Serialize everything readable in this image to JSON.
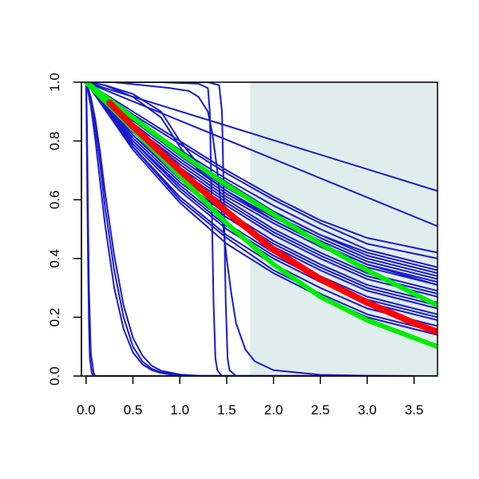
{
  "chart_data": {
    "type": "line",
    "title": "",
    "xlabel": "",
    "ylabel": "",
    "xlim": [
      -0.05,
      3.75
    ],
    "ylim": [
      0.0,
      1.0
    ],
    "x_ticks": [
      0.0,
      0.5,
      1.0,
      1.5,
      2.0,
      2.5,
      3.0,
      3.5
    ],
    "x_tick_labels": [
      "0.0",
      "0.5",
      "1.0",
      "1.5",
      "2.0",
      "2.5",
      "3.0",
      "3.5"
    ],
    "y_ticks": [
      0.0,
      0.2,
      0.4,
      0.6,
      0.8,
      1.0
    ],
    "y_tick_labels": [
      "0.0",
      "0.2",
      "0.4",
      "0.6",
      "0.8",
      "1.0"
    ],
    "grid": false,
    "legend": "none",
    "shaded_region": {
      "x_start": 1.75,
      "x_end": 3.75,
      "color": "#e0eded"
    },
    "colors": {
      "sample_curves": "#1a1acc",
      "estimate": "#ff0000",
      "bounds": "#00ee00"
    },
    "sample_curves": [
      {
        "x": [
          0.0,
          3.75
        ],
        "y": [
          1.0,
          0.63
        ]
      },
      {
        "x": [
          0.0,
          3.75
        ],
        "y": [
          1.0,
          0.51
        ]
      },
      {
        "x": [
          0.0,
          0.5,
          1.0,
          1.5,
          2.0,
          2.5,
          3.0,
          3.75
        ],
        "y": [
          1.0,
          0.9,
          0.8,
          0.7,
          0.61,
          0.53,
          0.47,
          0.42
        ]
      },
      {
        "x": [
          0.0,
          0.5,
          1.0,
          1.5,
          2.0,
          2.5,
          3.0,
          3.75
        ],
        "y": [
          1.0,
          0.89,
          0.79,
          0.69,
          0.6,
          0.52,
          0.45,
          0.4
        ]
      },
      {
        "x": [
          0.0,
          0.5,
          1.0,
          1.5,
          2.0,
          2.5,
          3.0,
          3.75
        ],
        "y": [
          1.0,
          0.88,
          0.77,
          0.67,
          0.58,
          0.5,
          0.43,
          0.37
        ]
      },
      {
        "x": [
          0.0,
          0.5,
          1.0,
          1.5,
          2.0,
          2.5,
          3.0,
          3.75
        ],
        "y": [
          1.0,
          0.87,
          0.76,
          0.65,
          0.56,
          0.48,
          0.41,
          0.35
        ]
      },
      {
        "x": [
          0.0,
          0.5,
          1.0,
          1.5,
          2.0,
          2.5,
          3.0,
          3.75
        ],
        "y": [
          1.0,
          0.86,
          0.74,
          0.63,
          0.54,
          0.46,
          0.39,
          0.33
        ]
      },
      {
        "x": [
          0.0,
          0.5,
          1.0,
          1.5,
          2.0,
          2.5,
          3.0,
          3.75
        ],
        "y": [
          1.0,
          0.85,
          0.72,
          0.61,
          0.52,
          0.44,
          0.37,
          0.31
        ]
      },
      {
        "x": [
          0.0,
          0.5,
          1.0,
          1.5,
          2.0,
          2.5,
          3.0,
          3.75
        ],
        "y": [
          1.0,
          0.84,
          0.71,
          0.6,
          0.5,
          0.42,
          0.35,
          0.29
        ]
      },
      {
        "x": [
          0.0,
          0.5,
          1.0,
          1.5,
          2.0,
          2.5,
          3.0,
          3.75
        ],
        "y": [
          1.0,
          0.83,
          0.69,
          0.58,
          0.48,
          0.4,
          0.33,
          0.27
        ]
      },
      {
        "x": [
          0.0,
          0.5,
          1.0,
          1.5,
          2.0,
          2.5,
          3.0,
          3.75
        ],
        "y": [
          1.0,
          0.82,
          0.68,
          0.56,
          0.46,
          0.38,
          0.31,
          0.25
        ]
      },
      {
        "x": [
          0.0,
          0.5,
          1.0,
          1.5,
          2.0,
          2.5,
          3.0,
          3.75
        ],
        "y": [
          1.0,
          0.81,
          0.66,
          0.54,
          0.44,
          0.36,
          0.29,
          0.23
        ]
      },
      {
        "x": [
          0.0,
          0.5,
          1.0,
          1.5,
          2.0,
          2.5,
          3.0,
          3.75
        ],
        "y": [
          1.0,
          0.8,
          0.65,
          0.52,
          0.42,
          0.34,
          0.27,
          0.21
        ]
      },
      {
        "x": [
          0.0,
          0.5,
          1.0,
          1.5,
          2.0,
          2.5,
          3.0,
          3.75
        ],
        "y": [
          1.0,
          0.79,
          0.63,
          0.5,
          0.4,
          0.32,
          0.25,
          0.19
        ]
      },
      {
        "x": [
          0.0,
          0.5,
          1.0,
          1.5,
          2.0,
          2.5,
          3.0,
          3.75
        ],
        "y": [
          1.0,
          0.78,
          0.61,
          0.48,
          0.38,
          0.3,
          0.23,
          0.17
        ]
      },
      {
        "x": [
          0.0,
          0.5,
          1.0,
          1.5,
          2.0,
          2.5,
          3.0,
          3.75
        ],
        "y": [
          1.0,
          0.78,
          0.6,
          0.47,
          0.36,
          0.28,
          0.21,
          0.15
        ]
      },
      {
        "x": [
          0.0,
          0.5,
          1.0,
          1.5,
          2.0,
          2.5,
          3.0,
          3.75
        ],
        "y": [
          1.0,
          0.77,
          0.59,
          0.45,
          0.35,
          0.27,
          0.2,
          0.14
        ]
      },
      {
        "x": [
          0.0,
          0.5,
          1.0,
          1.5,
          2.0,
          2.5,
          3.0,
          3.75
        ],
        "y": [
          1.0,
          0.87,
          0.75,
          0.64,
          0.55,
          0.47,
          0.4,
          0.34
        ]
      },
      {
        "x": [
          0.0,
          0.5,
          1.0,
          1.5,
          2.0,
          2.5,
          3.0,
          3.75
        ],
        "y": [
          1.0,
          0.85,
          0.73,
          0.62,
          0.53,
          0.45,
          0.38,
          0.32
        ]
      },
      {
        "x": [
          0.0,
          0.5,
          1.0,
          1.5,
          2.0,
          2.5,
          3.0,
          3.75
        ],
        "y": [
          1.0,
          0.83,
          0.7,
          0.59,
          0.49,
          0.41,
          0.34,
          0.28
        ]
      },
      {
        "x": [
          0.0,
          0.5,
          1.0,
          1.5,
          2.0,
          2.5,
          3.0,
          3.75
        ],
        "y": [
          1.0,
          0.82,
          0.67,
          0.55,
          0.45,
          0.37,
          0.3,
          0.24
        ]
      },
      {
        "x": [
          0.0,
          0.5,
          1.0,
          1.5,
          2.0,
          2.5,
          3.0,
          3.75
        ],
        "y": [
          1.0,
          0.8,
          0.64,
          0.51,
          0.41,
          0.33,
          0.26,
          0.2
        ]
      },
      {
        "x": [
          0.0,
          0.2,
          0.5,
          0.8,
          1.0,
          1.2,
          1.5,
          2.0,
          2.5,
          3.0,
          3.75
        ],
        "y": [
          1.0,
          0.99,
          0.96,
          0.9,
          0.8,
          0.72,
          0.66,
          0.56,
          0.48,
          0.42,
          0.36
        ]
      },
      {
        "x": [
          0.0,
          0.2,
          0.5,
          0.8,
          1.0,
          1.2,
          1.5,
          2.0,
          2.5,
          3.0,
          3.75
        ],
        "y": [
          1.0,
          0.99,
          0.95,
          0.88,
          0.78,
          0.7,
          0.63,
          0.53,
          0.45,
          0.38,
          0.31
        ]
      },
      {
        "x": [
          0.0,
          0.3,
          0.6,
          0.9,
          1.0,
          1.1,
          1.2,
          1.3,
          1.35,
          1.4,
          1.45,
          1.5,
          1.55,
          1.6,
          1.7,
          1.8,
          2.0,
          2.5,
          3.0,
          3.75
        ],
        "y": [
          1.0,
          1.0,
          0.99,
          0.98,
          0.975,
          0.97,
          0.95,
          0.9,
          0.82,
          0.7,
          0.55,
          0.4,
          0.28,
          0.18,
          0.09,
          0.05,
          0.02,
          0.004,
          0.001,
          0.0
        ]
      },
      {
        "x": [
          0.0,
          0.8,
          1.2,
          1.3,
          1.32,
          1.34,
          1.36,
          1.38,
          1.4,
          1.45,
          3.75
        ],
        "y": [
          1.0,
          1.0,
          0.995,
          0.98,
          0.9,
          0.6,
          0.25,
          0.06,
          0.02,
          0.0,
          0.0
        ]
      },
      {
        "x": [
          0.0,
          0.8,
          1.3,
          1.42,
          1.45,
          1.47,
          1.49,
          1.51,
          1.53,
          1.6,
          3.75
        ],
        "y": [
          1.0,
          1.0,
          1.0,
          0.99,
          0.9,
          0.6,
          0.25,
          0.06,
          0.02,
          0.0,
          0.0
        ]
      },
      {
        "x": [
          0.0,
          0.05,
          0.1,
          0.15,
          0.2,
          0.3,
          0.4,
          0.5,
          0.6,
          0.7,
          0.8,
          1.0,
          1.2,
          3.75
        ],
        "y": [
          1.0,
          0.92,
          0.8,
          0.66,
          0.52,
          0.3,
          0.16,
          0.08,
          0.04,
          0.02,
          0.01,
          0.0,
          0.0,
          0.0
        ]
      },
      {
        "x": [
          0.0,
          0.05,
          0.1,
          0.15,
          0.2,
          0.3,
          0.4,
          0.5,
          0.6,
          0.7,
          0.8,
          1.0,
          1.2,
          3.75
        ],
        "y": [
          1.0,
          0.94,
          0.84,
          0.72,
          0.58,
          0.36,
          0.2,
          0.1,
          0.05,
          0.025,
          0.012,
          0.003,
          0.0,
          0.0
        ]
      },
      {
        "x": [
          0.0,
          0.05,
          0.1,
          0.15,
          0.2,
          0.3,
          0.4,
          0.5,
          0.6,
          0.7,
          0.8,
          1.0,
          1.2,
          3.75
        ],
        "y": [
          1.0,
          0.95,
          0.87,
          0.76,
          0.63,
          0.41,
          0.24,
          0.13,
          0.07,
          0.035,
          0.018,
          0.005,
          0.001,
          0.0
        ]
      },
      {
        "x": [
          0.0,
          0.01,
          0.02,
          0.03,
          0.05,
          0.08,
          0.1,
          3.75
        ],
        "y": [
          1.0,
          0.85,
          0.55,
          0.3,
          0.08,
          0.01,
          0.0,
          0.0
        ]
      },
      {
        "x": [
          0.0,
          0.01,
          0.02,
          0.03,
          0.04,
          0.06,
          0.08,
          3.75
        ],
        "y": [
          1.0,
          0.7,
          0.4,
          0.18,
          0.06,
          0.01,
          0.0,
          0.0
        ]
      }
    ],
    "estimate": {
      "x": [
        0.25,
        0.5,
        1.0,
        1.5,
        2.0,
        2.5,
        3.0,
        3.5,
        3.75
      ],
      "y": [
        0.93,
        0.85,
        0.7,
        0.56,
        0.43,
        0.33,
        0.25,
        0.18,
        0.15
      ]
    },
    "upper_bound": {
      "x": [
        0.0,
        0.5,
        1.0,
        1.5,
        2.0,
        2.5,
        3.0,
        3.5,
        3.75
      ],
      "y": [
        1.0,
        0.88,
        0.76,
        0.65,
        0.55,
        0.45,
        0.36,
        0.28,
        0.24
      ]
    },
    "lower_bound": {
      "x": [
        0.0,
        0.5,
        1.0,
        1.5,
        2.0,
        2.5,
        3.0,
        3.5,
        3.75
      ],
      "y": [
        1.0,
        0.84,
        0.68,
        0.52,
        0.38,
        0.27,
        0.19,
        0.13,
        0.1
      ]
    }
  }
}
